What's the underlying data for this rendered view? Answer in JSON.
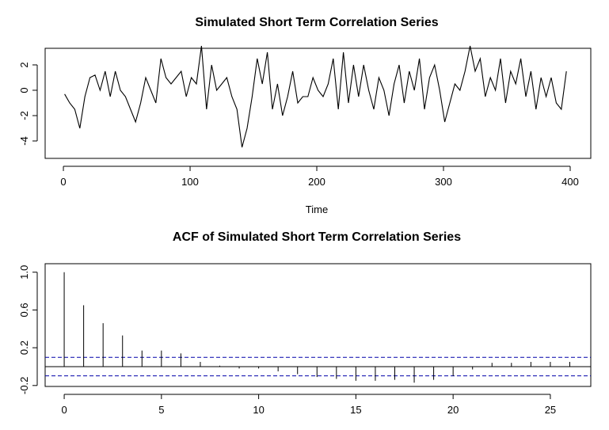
{
  "chart_data": [
    {
      "type": "line",
      "title": "Simulated Short Term Correlation Series",
      "xlabel": "Time",
      "color": "#000000",
      "x": [
        1,
        5,
        9,
        13,
        17,
        21,
        25,
        29,
        33,
        37,
        41,
        45,
        49,
        53,
        57,
        61,
        65,
        69,
        73,
        77,
        81,
        85,
        89,
        93,
        97,
        101,
        105,
        109,
        113,
        117,
        121,
        125,
        129,
        133,
        137,
        141,
        145,
        149,
        153,
        157,
        161,
        165,
        169,
        173,
        177,
        181,
        185,
        189,
        193,
        197,
        201,
        205,
        209,
        213,
        217,
        221,
        225,
        229,
        233,
        237,
        241,
        245,
        249,
        253,
        257,
        261,
        265,
        269,
        273,
        277,
        281,
        285,
        289,
        293,
        297,
        301,
        305,
        309,
        313,
        317,
        321,
        325,
        329,
        333,
        337,
        341,
        345,
        349,
        353,
        357,
        361,
        365,
        369,
        373,
        377,
        381,
        385,
        389,
        393,
        397
      ],
      "values": [
        -0.3,
        -1,
        -1.5,
        -3,
        -0.5,
        1,
        1.2,
        0,
        1.5,
        -0.5,
        1.5,
        0,
        -0.5,
        -1.5,
        -2.5,
        -1,
        1,
        0,
        -1,
        2.5,
        1,
        0.5,
        1,
        1.5,
        -0.5,
        1,
        0.5,
        3.5,
        -1.5,
        2,
        0,
        0.5,
        1,
        -0.5,
        -1.5,
        -4.5,
        -3,
        -0.5,
        2.5,
        0.5,
        3,
        -1.5,
        0.5,
        -2,
        -0.5,
        1.5,
        -1,
        -0.5,
        -0.5,
        1,
        0,
        -0.5,
        0.5,
        2.5,
        -1.5,
        3,
        -1,
        2,
        -0.5,
        2,
        0,
        -1.5,
        1,
        0,
        -2,
        0.5,
        2,
        -1,
        1.5,
        0,
        2.5,
        -1.5,
        1,
        2,
        0,
        -2.5,
        -1,
        0.5,
        0,
        1.5,
        3.5,
        1.5,
        2.5,
        -0.5,
        1,
        0,
        2.5,
        -1,
        1.5,
        0.5,
        2.5,
        -0.5,
        1.5,
        -1.5,
        1,
        -0.5,
        1,
        -1,
        -1.5,
        1.5
      ],
      "xlim": [
        -14.4,
        416.25
      ],
      "ylim": [
        -5.375,
        3.31
      ],
      "xticks": [
        0,
        100,
        200,
        300,
        400
      ],
      "yticks": [
        -4,
        -2,
        0,
        2
      ]
    },
    {
      "type": "acf",
      "title": "ACF of Simulated Short Term Correlation Series",
      "color": "#000000",
      "conf_color": "#0000aa",
      "x": [
        0,
        1,
        2,
        3,
        4,
        5,
        6,
        7,
        8,
        9,
        10,
        11,
        12,
        13,
        14,
        15,
        16,
        17,
        18,
        19,
        20,
        21,
        22,
        23,
        24,
        25,
        26
      ],
      "values": [
        1.0,
        0.65,
        0.46,
        0.33,
        0.17,
        0.17,
        0.14,
        0.05,
        0.01,
        -0.02,
        -0.02,
        -0.05,
        -0.08,
        -0.11,
        -0.13,
        -0.15,
        -0.15,
        -0.14,
        -0.17,
        -0.14,
        -0.1,
        -0.03,
        0.04,
        0.04,
        0.05,
        0.05,
        0.05
      ],
      "conf_limits": [
        -0.098,
        0.098
      ],
      "xlim": [
        -0.98,
        27.08
      ],
      "ylim": [
        -0.21,
        1.09
      ],
      "xticks": [
        0,
        5,
        10,
        15,
        20,
        25
      ],
      "yticks": [
        -0.2,
        0.2,
        0.6,
        {
          "value": 1,
          "label": "1.0"
        }
      ]
    }
  ]
}
